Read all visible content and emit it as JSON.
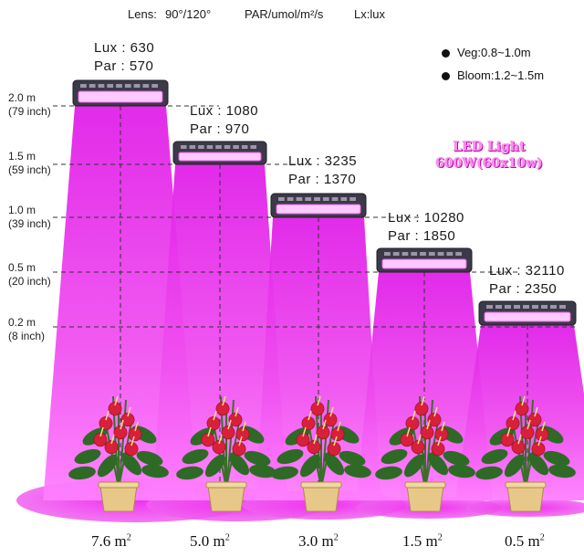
{
  "header": {
    "lens_label": "Lens:",
    "lens_value": "90°/120°",
    "par_unit": "PAR/umol/m²/s",
    "lux_unit": "Lx:lux"
  },
  "legend": {
    "veg": "Veg:0.8~1.0m",
    "bloom": "Bloom:1.2~1.5m"
  },
  "brand": {
    "line1": "LED Light",
    "line2": "600W(60x10w)"
  },
  "heights": [
    {
      "m": "2.0 m",
      "inch": "(79 inch)"
    },
    {
      "m": "1.5 m",
      "inch": "(59 inch)"
    },
    {
      "m": "1.0 m",
      "inch": "(39 inch)"
    },
    {
      "m": "0.5 m",
      "inch": "(20 inch)"
    },
    {
      "m": "0.2 m",
      "inch": "(8 inch)"
    }
  ],
  "lights": [
    {
      "lux": "Lux : 630",
      "par": "Par : 570",
      "area": "7.6 m",
      "sup": "2"
    },
    {
      "lux": "Lux : 1080",
      "par": "Par : 970",
      "area": "5.0 m",
      "sup": "2"
    },
    {
      "lux": "Lux : 3235",
      "par": "Par : 1370",
      "area": "3.0 m",
      "sup": "2"
    },
    {
      "lux": "Lux : 10280",
      "par": "Par : 1850",
      "area": "1.5 m",
      "sup": "2"
    },
    {
      "lux": "Lux : 32110",
      "par": "Par : 2350",
      "area": "0.5 m",
      "sup": "2"
    }
  ],
  "colors": {
    "beam": "#f030f0",
    "beam_light": "#ff9cff",
    "panel": "#3c3a48",
    "pot": "#e8c888",
    "flower": "#d8203a",
    "leaf": "#2e6a26"
  }
}
